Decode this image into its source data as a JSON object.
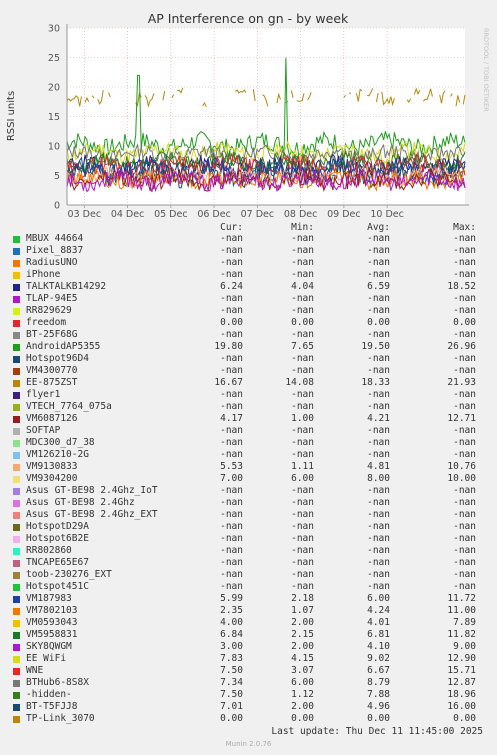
{
  "chart_data": {
    "type": "line",
    "title": "AP Interference on gn - by week",
    "ylabel": "RSSI units",
    "ylim": [
      0,
      30
    ],
    "yticks": [
      0,
      5,
      10,
      15,
      20,
      25,
      30
    ],
    "x_tick_labels": [
      "03 Dec",
      "04 Dec",
      "05 Dec",
      "06 Dec",
      "07 Dec",
      "08 Dec",
      "09 Dec",
      "10 Dec"
    ],
    "grid": true,
    "series": [
      {
        "name": "EE-875ZST",
        "color": "#b8860b",
        "base": 18.3,
        "amp": 1.2,
        "seed": 3,
        "gaps": true
      },
      {
        "name": "AndroidAP5355",
        "color": "#1e9e1e",
        "base": 10.3,
        "amp": 1.6,
        "seed": 7,
        "spike_x": 0.18,
        "spike_v": 26.96
      },
      {
        "name": "EE WiFi",
        "color": "#d4dc1c",
        "base": 8.9,
        "amp": 1.4,
        "seed": 11
      },
      {
        "name": "BTHub6-8S8X",
        "color": "#777777",
        "base": 8.6,
        "amp": 1.2,
        "seed": 13
      },
      {
        "name": "-hidden-",
        "color": "#3a7d1f",
        "base": 7.4,
        "amp": 1.3,
        "seed": 17
      },
      {
        "name": "TALKTALKB14292",
        "color": "#22228b",
        "base": 6.5,
        "amp": 1.5,
        "seed": 19
      },
      {
        "name": "VM5958831",
        "color": "#1a7a2a",
        "base": 6.8,
        "amp": 1.3,
        "seed": 23
      },
      {
        "name": "WNE",
        "color": "#e8262a",
        "base": 6.5,
        "amp": 1.6,
        "seed": 29
      },
      {
        "name": "VM187983",
        "color": "#1f3fa8",
        "base": 5.8,
        "amp": 1.7,
        "seed": 31
      },
      {
        "name": "BT-T5FJJ8",
        "color": "#1a4a70",
        "base": 5.0,
        "amp": 1.6,
        "seed": 37
      },
      {
        "name": "VM9130833",
        "color": "#f4a878",
        "base": 4.8,
        "amp": 1.4,
        "seed": 41
      },
      {
        "name": "VM7802103",
        "color": "#f07800",
        "base": 4.3,
        "amp": 1.3,
        "seed": 43
      },
      {
        "name": "VM6087126",
        "color": "#9a1b1b",
        "base": 4.3,
        "amp": 1.5,
        "seed": 47
      },
      {
        "name": "SKY8QWGM",
        "color": "#b018d0",
        "base": 4.1,
        "amp": 1.4,
        "seed": 53
      }
    ],
    "legend": {
      "headers": {
        "cur": "Cur:",
        "min": "Min:",
        "avg": "Avg:",
        "max": "Max:"
      },
      "rows": [
        {
          "name": "MBUX 44664",
          "color": "#1fbf3c",
          "cur": "-nan",
          "min": "-nan",
          "avg": "-nan",
          "max": "-nan"
        },
        {
          "name": "Pixel_8837",
          "color": "#1f6fbf",
          "cur": "-nan",
          "min": "-nan",
          "avg": "-nan",
          "max": "-nan"
        },
        {
          "name": "RadiusUNO",
          "color": "#f07800",
          "cur": "-nan",
          "min": "-nan",
          "avg": "-nan",
          "max": "-nan"
        },
        {
          "name": "iPhone",
          "color": "#f0c000",
          "cur": "-nan",
          "min": "-nan",
          "avg": "-nan",
          "max": "-nan"
        },
        {
          "name": "TALKTALKB14292",
          "color": "#22228b",
          "cur": "6.24",
          "min": "4.04",
          "avg": "6.59",
          "max": "18.52"
        },
        {
          "name": "TLAP-94E5",
          "color": "#b018d0",
          "cur": "-nan",
          "min": "-nan",
          "avg": "-nan",
          "max": "-nan"
        },
        {
          "name": "RR829629",
          "color": "#d4f01c",
          "cur": "-nan",
          "min": "-nan",
          "avg": "-nan",
          "max": "-nan"
        },
        {
          "name": "freedom",
          "color": "#e8262a",
          "cur": "0.00",
          "min": "0.00",
          "avg": "0.00",
          "max": "0.00"
        },
        {
          "name": "BT-25F68G",
          "color": "#888888",
          "cur": "-nan",
          "min": "-nan",
          "avg": "-nan",
          "max": "-nan"
        },
        {
          "name": "AndroidAP5355",
          "color": "#1e9e1e",
          "cur": "19.80",
          "min": "7.65",
          "avg": "19.50",
          "max": "26.96"
        },
        {
          "name": "Hotspot96D4",
          "color": "#1a4a70",
          "cur": "-nan",
          "min": "-nan",
          "avg": "-nan",
          "max": "-nan"
        },
        {
          "name": "VM4300770",
          "color": "#a04010",
          "cur": "-nan",
          "min": "-nan",
          "avg": "-nan",
          "max": "-nan"
        },
        {
          "name": "EE-875ZST",
          "color": "#b8860b",
          "cur": "16.67",
          "min": "14.08",
          "avg": "18.33",
          "max": "21.93"
        },
        {
          "name": "flyer1",
          "color": "#3a2080",
          "cur": "-nan",
          "min": "-nan",
          "avg": "-nan",
          "max": "-nan"
        },
        {
          "name": "VTECH_7764_075a",
          "color": "#98b020",
          "cur": "-nan",
          "min": "-nan",
          "avg": "-nan",
          "max": "-nan"
        },
        {
          "name": "VM6087126",
          "color": "#9a1b1b",
          "cur": "4.17",
          "min": "1.00",
          "avg": "4.21",
          "max": "12.71"
        },
        {
          "name": "SOFTAP",
          "color": "#b0b0b0",
          "cur": "-nan",
          "min": "-nan",
          "avg": "-nan",
          "max": "-nan"
        },
        {
          "name": "MDC300_d7_38",
          "color": "#90e090",
          "cur": "-nan",
          "min": "-nan",
          "avg": "-nan",
          "max": "-nan"
        },
        {
          "name": "VM126210-2G",
          "color": "#80c0f0",
          "cur": "-nan",
          "min": "-nan",
          "avg": "-nan",
          "max": "-nan"
        },
        {
          "name": "VM9130833",
          "color": "#f4a878",
          "cur": "5.53",
          "min": "1.11",
          "avg": "4.81",
          "max": "10.76"
        },
        {
          "name": "VM9304200",
          "color": "#f0e070",
          "cur": "7.00",
          "min": "6.00",
          "avg": "8.00",
          "max": "10.00"
        },
        {
          "name": "Asus GT-BE98 2.4Ghz_IoT",
          "color": "#a080e0",
          "cur": "-nan",
          "min": "-nan",
          "avg": "-nan",
          "max": "-nan"
        },
        {
          "name": "Asus GT-BE98 2.4Ghz",
          "color": "#e070e0",
          "cur": "-nan",
          "min": "-nan",
          "avg": "-nan",
          "max": "-nan"
        },
        {
          "name": "Asus GT-BE98 2.4Ghz_EXT",
          "color": "#f08080",
          "cur": "-nan",
          "min": "-nan",
          "avg": "-nan",
          "max": "-nan"
        },
        {
          "name": "HotspotD29A",
          "color": "#6a6a1a",
          "cur": "-nan",
          "min": "-nan",
          "avg": "-nan",
          "max": "-nan"
        },
        {
          "name": "Hotspot6B2E",
          "color": "#f0b0f0",
          "cur": "-nan",
          "min": "-nan",
          "avg": "-nan",
          "max": "-nan"
        },
        {
          "name": "RR802860",
          "color": "#30f0c0",
          "cur": "-nan",
          "min": "-nan",
          "avg": "-nan",
          "max": "-nan"
        },
        {
          "name": "TNCAPE65E67",
          "color": "#c06080",
          "cur": "-nan",
          "min": "-nan",
          "avg": "-nan",
          "max": "-nan"
        },
        {
          "name": "toob-230276_EXT",
          "color": "#a08040",
          "cur": "-nan",
          "min": "-nan",
          "avg": "-nan",
          "max": "-nan"
        },
        {
          "name": "Hotspot451C",
          "color": "#20c040",
          "cur": "-nan",
          "min": "-nan",
          "avg": "-nan",
          "max": "-nan"
        },
        {
          "name": "VM187983",
          "color": "#1f3fa8",
          "cur": "5.99",
          "min": "2.18",
          "avg": "6.00",
          "max": "11.72"
        },
        {
          "name": "VM7802103",
          "color": "#f07800",
          "cur": "2.35",
          "min": "1.07",
          "avg": "4.24",
          "max": "11.00"
        },
        {
          "name": "VM0593043",
          "color": "#f0c000",
          "cur": "4.00",
          "min": "2.00",
          "avg": "4.01",
          "max": "7.89"
        },
        {
          "name": "VM5958831",
          "color": "#1a7a2a",
          "cur": "6.84",
          "min": "2.15",
          "avg": "6.81",
          "max": "11.82"
        },
        {
          "name": "SKY8QWGM",
          "color": "#b018d0",
          "cur": "3.00",
          "min": "2.00",
          "avg": "4.10",
          "max": "9.00"
        },
        {
          "name": "EE WiFi",
          "color": "#d4dc1c",
          "cur": "7.83",
          "min": "4.15",
          "avg": "9.02",
          "max": "12.90"
        },
        {
          "name": "WNE",
          "color": "#e8262a",
          "cur": "7.50",
          "min": "3.07",
          "avg": "6.67",
          "max": "15.71"
        },
        {
          "name": "BTHub6-8S8X",
          "color": "#777777",
          "cur": "7.34",
          "min": "6.00",
          "avg": "8.79",
          "max": "12.87"
        },
        {
          "name": "-hidden-",
          "color": "#3a7d1f",
          "cur": "7.50",
          "min": "1.12",
          "avg": "7.88",
          "max": "18.96"
        },
        {
          "name": "BT-T5FJJ8",
          "color": "#1a4a70",
          "cur": "7.01",
          "min": "2.00",
          "avg": "4.96",
          "max": "16.00"
        },
        {
          "name": "TP-Link_3070",
          "color": "#b8860b",
          "cur": "0.00",
          "min": "0.00",
          "avg": "0.00",
          "max": "0.00"
        }
      ]
    }
  },
  "side_label": "RRDTOOL / TOBI OETIKER",
  "footer": {
    "last_update": "Last update: Thu Dec 11 11:45:00 2025",
    "munin_version": "Munin 2.0.76"
  }
}
